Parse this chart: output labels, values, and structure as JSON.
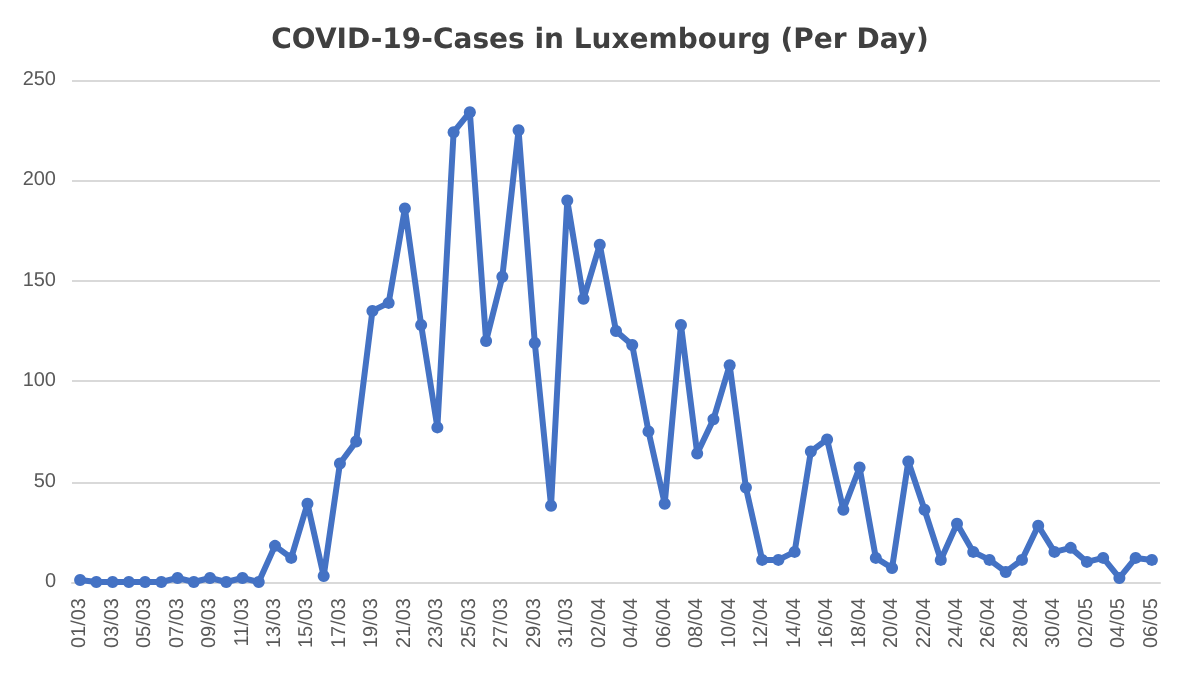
{
  "chart_data": {
    "type": "line",
    "title": "COVID-19-Cases in Luxembourg (Per Day)",
    "categories": [
      "01/03",
      null,
      "03/03",
      null,
      "05/03",
      null,
      "07/03",
      null,
      "09/03",
      null,
      "11/03",
      null,
      "13/03",
      null,
      "15/03",
      null,
      "17/03",
      null,
      "19/03",
      null,
      "21/03",
      null,
      "23/03",
      null,
      "25/03",
      null,
      "27/03",
      null,
      "29/03",
      null,
      "31/03",
      null,
      "02/04",
      null,
      "04/04",
      null,
      "06/04",
      null,
      "08/04",
      null,
      "10/04",
      null,
      "12/04",
      null,
      "14/04",
      null,
      "16/04",
      null,
      "18/04",
      null,
      "20/04",
      null,
      "22/04",
      null,
      "24/04",
      null,
      "26/04",
      null,
      "28/04",
      null,
      "30/04",
      null,
      "02/05",
      null,
      "04/05",
      null,
      "06/05"
    ],
    "series": [
      {
        "color": "#4472c4",
        "values": [
          1,
          0,
          0,
          0,
          0,
          0,
          2,
          0,
          2,
          0,
          2,
          0,
          18,
          12,
          39,
          3,
          59,
          70,
          135,
          139,
          186,
          128,
          77,
          224,
          234,
          120,
          152,
          225,
          119,
          38,
          190,
          141,
          168,
          125,
          118,
          75,
          39,
          128,
          64,
          81,
          108,
          47,
          11,
          11,
          15,
          65,
          71,
          36,
          57,
          12,
          7,
          60,
          36,
          11,
          29,
          15,
          11,
          5,
          11,
          28,
          15,
          17,
          10,
          12,
          2,
          12,
          11
        ]
      }
    ],
    "ylim": [
      0,
      250
    ],
    "yticks": [
      0,
      50,
      100,
      150,
      200,
      250
    ],
    "grid": "y",
    "marker": "circle",
    "line_style": "solid"
  }
}
